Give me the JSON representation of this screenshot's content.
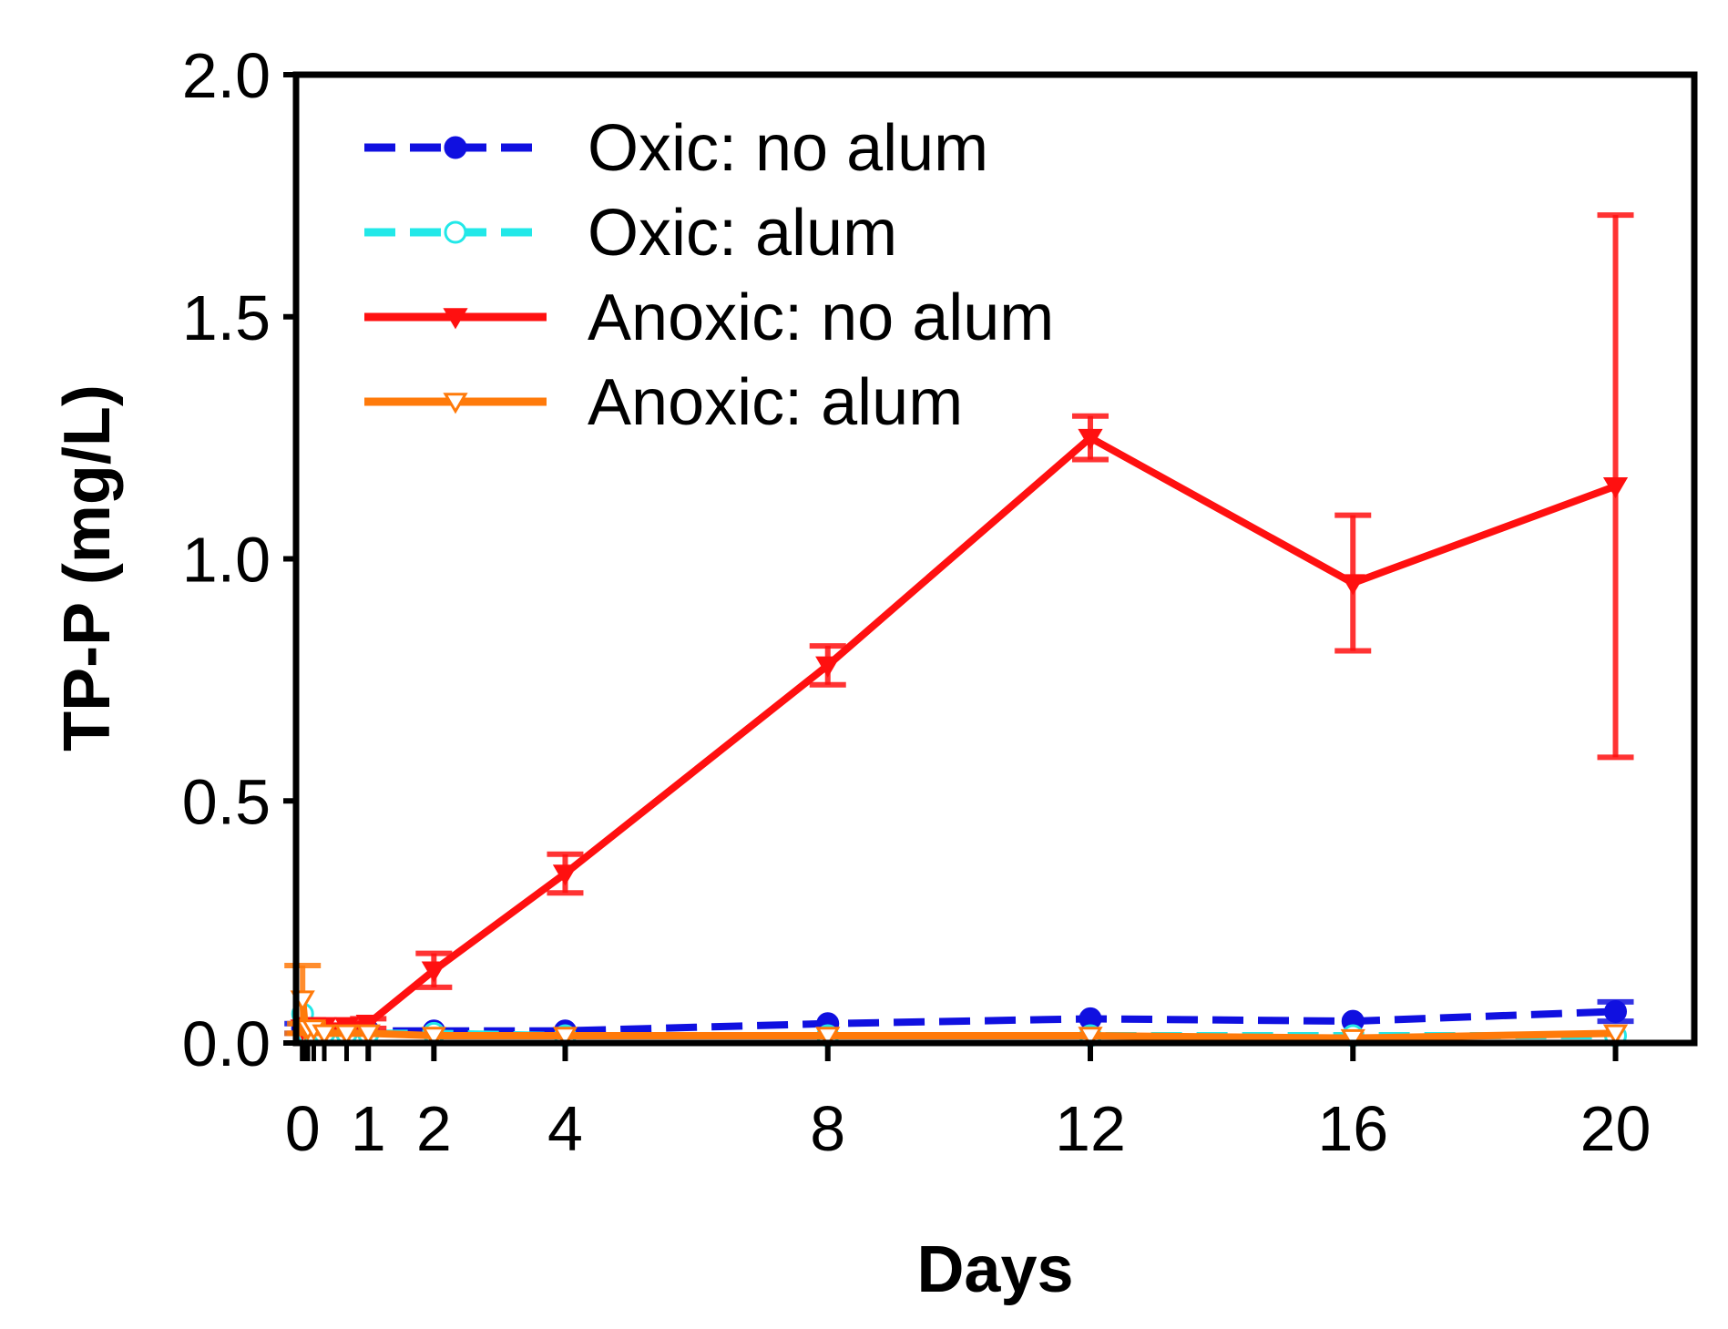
{
  "chart_data": {
    "type": "line",
    "title": "",
    "xlabel": "Days",
    "ylabel": "TP-P (mg/L)",
    "xlim": [
      -0.1,
      21.2
    ],
    "ylim": [
      0,
      2.0
    ],
    "x_ticks": [
      0,
      1,
      2,
      4,
      8,
      12,
      16,
      20
    ],
    "x_tick_labels": [
      "0",
      "1",
      "2",
      "4",
      "8",
      "12",
      "16",
      "20"
    ],
    "x_minor_ticks": [
      0.04,
      0.08,
      0.17,
      0.33,
      0.67
    ],
    "y_ticks": [
      0.0,
      0.5,
      1.0,
      1.5,
      2.0
    ],
    "y_tick_labels": [
      "0.0",
      "0.5",
      "1.0",
      "1.5",
      "2.0"
    ],
    "grid": false,
    "legend_position": "top-left",
    "series": [
      {
        "name": "Oxic: no alum",
        "color": "#1010e0",
        "line_style": "dashed",
        "marker": "filled-circle",
        "x": [
          0,
          0.04,
          0.08,
          0.17,
          0.33,
          0.67,
          1,
          2,
          4,
          8,
          12,
          16,
          20
        ],
        "y": [
          0.03,
          0.025,
          0.025,
          0.025,
          0.025,
          0.025,
          0.025,
          0.025,
          0.025,
          0.04,
          0.05,
          0.045,
          0.065
        ],
        "err": [
          0.01,
          0.005,
          0.005,
          0.005,
          0.005,
          0.005,
          0.005,
          0.005,
          0.005,
          0.005,
          0.005,
          0.005,
          0.02
        ]
      },
      {
        "name": "Oxic: alum",
        "color": "#22e8e8",
        "line_style": "dashed",
        "marker": "open-circle",
        "x": [
          0,
          0.04,
          0.08,
          0.17,
          0.33,
          0.67,
          1,
          2,
          4,
          8,
          12,
          16,
          20
        ],
        "y": [
          0.06,
          0.02,
          0.02,
          0.02,
          0.02,
          0.02,
          0.02,
          0.02,
          0.015,
          0.015,
          0.015,
          0.015,
          0.015
        ],
        "err": [
          0.005,
          0.005,
          0.005,
          0.005,
          0.005,
          0.005,
          0.005,
          0.005,
          0.005,
          0.005,
          0.005,
          0.005,
          0.005
        ]
      },
      {
        "name": "Anoxic: no alum",
        "color": "#ff1010",
        "line_style": "solid",
        "marker": "filled-triangle-down",
        "x": [
          0,
          0.04,
          0.08,
          0.17,
          0.33,
          0.67,
          1,
          2,
          4,
          8,
          12,
          16,
          20
        ],
        "y": [
          0.03,
          0.035,
          0.035,
          0.035,
          0.035,
          0.035,
          0.04,
          0.15,
          0.35,
          0.78,
          1.25,
          0.95,
          1.15
        ],
        "err": [
          0.005,
          0.005,
          0.005,
          0.005,
          0.005,
          0.005,
          0.01,
          0.035,
          0.04,
          0.04,
          0.045,
          0.14,
          0.56
        ]
      },
      {
        "name": "Anoxic: alum",
        "color": "#ff7a0a",
        "line_style": "solid",
        "marker": "open-triangle-down",
        "x": [
          0,
          0.04,
          0.08,
          0.17,
          0.33,
          0.67,
          1,
          2,
          4,
          8,
          12,
          16,
          20
        ],
        "y": [
          0.09,
          0.03,
          0.03,
          0.03,
          0.02,
          0.02,
          0.02,
          0.015,
          0.015,
          0.015,
          0.015,
          0.01,
          0.02
        ],
        "err": [
          0.07,
          0.01,
          0.01,
          0.005,
          0.005,
          0.005,
          0.005,
          0.005,
          0.005,
          0.005,
          0.005,
          0.005,
          0.005
        ]
      }
    ]
  }
}
